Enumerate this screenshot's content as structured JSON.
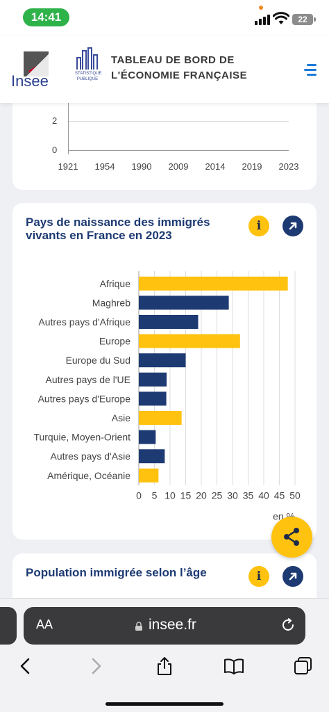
{
  "status": {
    "time": "14:41",
    "battery": "22"
  },
  "header": {
    "insee_logo": "Insee",
    "stat_logo": "STATISTIQUE PUBLIQUE",
    "title_line1": "TABLEAU DE BORD DE",
    "title_line2": "L'ÉCONOMIE FRANÇAISE",
    "menu_icon": "hamburger-menu-icon"
  },
  "top_chart": {
    "y_ticks": [
      "2",
      "0"
    ],
    "x_ticks": [
      "1921",
      "1954",
      "1990",
      "2009",
      "2014",
      "2019",
      "2023"
    ]
  },
  "chart_card": {
    "title": "Pays de naissance des immigrés vivants en France en 2023",
    "info_label": "i",
    "open_icon": "arrow-up-right-icon"
  },
  "chart_data": {
    "type": "bar",
    "orientation": "horizontal",
    "categories": [
      "Afrique",
      "Maghreb",
      "Autres pays d'Afrique",
      "Europe",
      "Europe du Sud",
      "Autres pays de l'UE",
      "Autres pays d'Europe",
      "Asie",
      "Turquie, Moyen-Orient",
      "Autres pays d'Asie",
      "Amérique, Océanie"
    ],
    "values": [
      47.7,
      28.8,
      19.0,
      32.4,
      15.0,
      8.9,
      8.8,
      13.7,
      5.4,
      8.3,
      6.3
    ],
    "colors": [
      "#ffc20e",
      "#1d3a73",
      "#1d3a73",
      "#ffc20e",
      "#1d3a73",
      "#1d3a73",
      "#1d3a73",
      "#ffc20e",
      "#1d3a73",
      "#1d3a73",
      "#ffc20e"
    ],
    "x_ticks": [
      "0",
      "5",
      "10",
      "15",
      "20",
      "25",
      "30",
      "35",
      "40",
      "45",
      "50"
    ],
    "xlim": [
      0,
      50
    ],
    "unit_label": "en %",
    "grid": true
  },
  "next_card": {
    "title": "Population immigrée selon l’âge",
    "info_label": "i",
    "open_icon": "arrow-up-right-icon"
  },
  "share_icon": "share-icon",
  "browser": {
    "text_size_label": "AA",
    "url": "insee.fr",
    "icons": [
      "back-icon",
      "forward-icon",
      "share-icon",
      "bookmarks-icon",
      "tabs-icon"
    ]
  },
  "colors": {
    "accent_yellow": "#ffc20e",
    "accent_navy": "#1d3a73",
    "menu_blue": "#1e7bd9"
  }
}
